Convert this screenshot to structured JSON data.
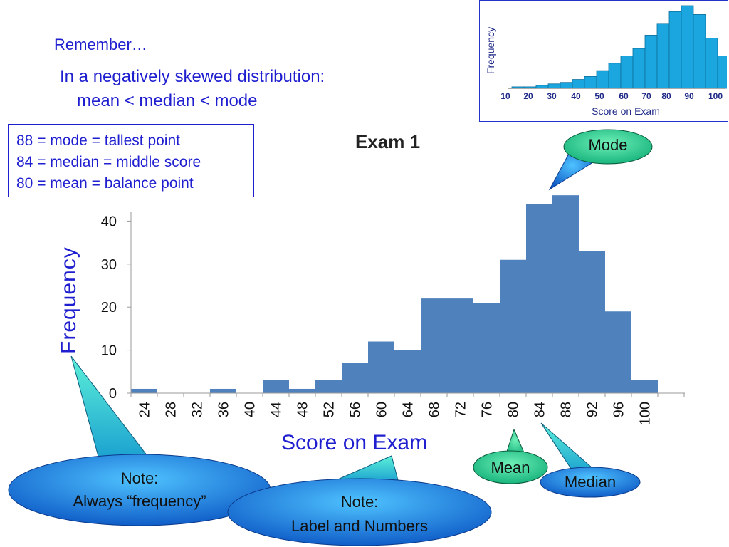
{
  "slide": {
    "remember": "Remember…",
    "skew_line1": "In a negatively skewed distribution:",
    "skew_line2": "mean < median < mode"
  },
  "info_box": {
    "lines": [
      "88 = mode = tallest point",
      "84 = median = middle score",
      "80 = mean = balance point"
    ]
  },
  "callouts": {
    "mode": "Mode",
    "mean": "Mean",
    "median": "Median",
    "note_frequency_1": "Note:",
    "note_frequency_2": "Always “frequency”",
    "note_labels_1": "Note:",
    "note_labels_2": "Label and Numbers"
  },
  "colors": {
    "bar": "#4f81bd",
    "text_blue": "#1f1fd0",
    "bubble_green": "#22c58a",
    "bubble_blue": "#1e6fd6",
    "thumb_bar": "#1ca6e0"
  },
  "chart_data": [
    {
      "type": "bar",
      "title": "Exam 1",
      "xlabel": "Score on Exam",
      "ylabel": "Frequency",
      "categories": [
        "24",
        "28",
        "32",
        "36",
        "40",
        "44",
        "48",
        "52",
        "56",
        "60",
        "64",
        "68",
        "72",
        "76",
        "80",
        "84",
        "88",
        "92",
        "96",
        "100"
      ],
      "values": [
        1,
        0,
        0,
        1,
        0,
        3,
        1,
        3,
        7,
        12,
        10,
        22,
        22,
        21,
        31,
        44,
        46,
        33,
        19,
        3
      ],
      "yticks": [
        0,
        10,
        20,
        30,
        40
      ],
      "ylim": [
        0,
        46
      ],
      "grid": false
    },
    {
      "type": "bar",
      "xlabel": "Score on Exam",
      "ylabel": "Frequency",
      "xticks": [
        "10",
        "20",
        "30",
        "40",
        "50",
        "60",
        "70",
        "80",
        "90",
        "100"
      ],
      "values": [
        0.5,
        0.5,
        1,
        1.5,
        2,
        3,
        4,
        6,
        8.5,
        11,
        13.5,
        18,
        22,
        26,
        28,
        25,
        17,
        11
      ],
      "ylim": [
        0,
        28
      ]
    }
  ]
}
